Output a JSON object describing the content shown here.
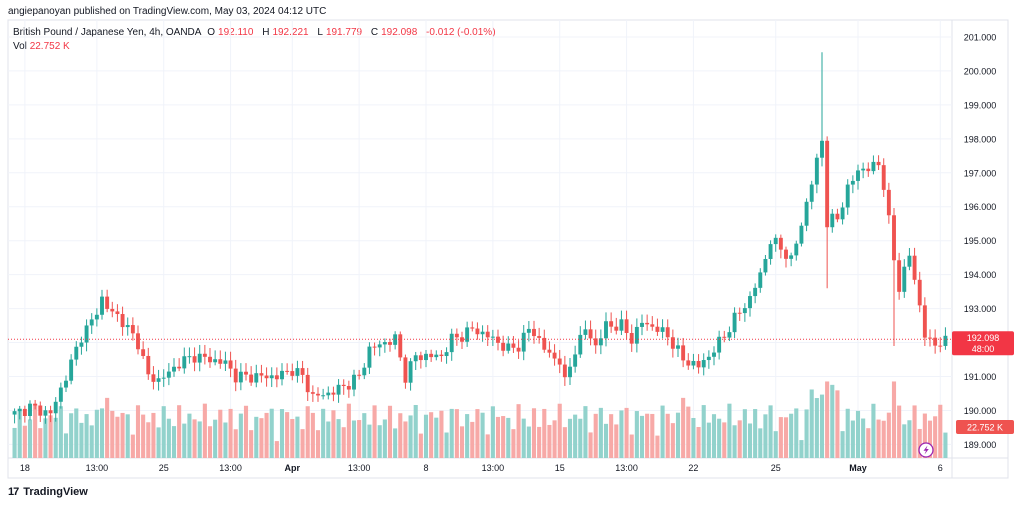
{
  "header": {
    "publisher_line": "angiepanoyan published on TradingView.com, May 03, 2024 04:12 UTC",
    "symbol": "British Pound / Japanese Yen, 4h, OANDA",
    "open_label": "O",
    "open": "192.110",
    "high_label": "H",
    "high": "192.221",
    "low_label": "L",
    "low": "191.779",
    "close_label": "C",
    "close": "192.098",
    "change": "-0.012 (-0.01%)",
    "vol_label": "Vol",
    "vol_value": "22.752 K"
  },
  "footer": {
    "brand": "TradingView",
    "logo": "17"
  },
  "colors": {
    "up": "#26a69a",
    "down": "#ef5350",
    "up_vol": "#92d2cc",
    "down_vol": "#f7a9a7",
    "price_line": "#f23645",
    "grid": "#f0f3fa"
  },
  "chart_data": {
    "type": "candlestick",
    "title": "British Pound / Japanese Yen, 4h, OANDA",
    "ylim": [
      188.6,
      201.5
    ],
    "y_ticks": [
      "201.000",
      "200.000",
      "199.000",
      "198.000",
      "197.000",
      "196.000",
      "195.000",
      "194.000",
      "193.000",
      "192.000",
      "191.000",
      "190.000",
      "189.000"
    ],
    "y_tick_values": [
      201,
      200,
      199,
      198,
      197,
      196,
      195,
      194,
      193,
      192,
      191,
      190,
      189
    ],
    "x_tick_labels": [
      "18",
      "13:00",
      "25",
      "13:00",
      "Apr",
      "13:00",
      "8",
      "13:00",
      "15",
      "13:00",
      "22",
      "25",
      "May",
      "6"
    ],
    "x_tick_bars": [
      2,
      16,
      29,
      42,
      54,
      67,
      80,
      93,
      106,
      119,
      132,
      148,
      164,
      180
    ],
    "current_price_label": "192.098",
    "countdown_label": "48:00",
    "volume_label": "22.752 K",
    "anchors": [
      [
        0,
        189.9
      ],
      [
        3,
        190.1
      ],
      [
        7,
        189.9
      ],
      [
        10,
        191.0
      ],
      [
        13,
        192.2
      ],
      [
        15,
        192.6
      ],
      [
        17,
        193.3
      ],
      [
        18,
        193.0
      ],
      [
        20,
        192.8
      ],
      [
        22,
        192.4
      ],
      [
        24,
        192.0
      ],
      [
        26,
        191.0
      ],
      [
        28,
        190.9
      ],
      [
        30,
        191.1
      ],
      [
        32,
        191.4
      ],
      [
        35,
        191.6
      ],
      [
        38,
        191.5
      ],
      [
        41,
        191.4
      ],
      [
        43,
        191.0
      ],
      [
        45,
        191.0
      ],
      [
        48,
        191.0
      ],
      [
        51,
        191.0
      ],
      [
        54,
        191.2
      ],
      [
        56,
        191.0
      ],
      [
        58,
        190.4
      ],
      [
        61,
        190.5
      ],
      [
        64,
        190.7
      ],
      [
        67,
        191.0
      ],
      [
        69,
        191.8
      ],
      [
        72,
        192.0
      ],
      [
        74,
        192.1
      ],
      [
        76,
        191.0
      ],
      [
        78,
        191.6
      ],
      [
        80,
        191.6
      ],
      [
        83,
        191.6
      ],
      [
        85,
        192.1
      ],
      [
        87,
        192.2
      ],
      [
        89,
        192.4
      ],
      [
        92,
        192.2
      ],
      [
        94,
        192.0
      ],
      [
        96,
        191.8
      ],
      [
        98,
        191.9
      ],
      [
        100,
        192.4
      ],
      [
        102,
        192.1
      ],
      [
        104,
        191.6
      ],
      [
        106,
        191.5
      ],
      [
        107,
        190.8
      ],
      [
        109,
        191.8
      ],
      [
        111,
        192.4
      ],
      [
        113,
        191.9
      ],
      [
        115,
        192.5
      ],
      [
        118,
        192.5
      ],
      [
        120,
        192.1
      ],
      [
        122,
        192.6
      ],
      [
        125,
        192.4
      ],
      [
        127,
        192.2
      ],
      [
        130,
        191.5
      ],
      [
        133,
        191.3
      ],
      [
        135,
        191.6
      ],
      [
        138,
        192.2
      ],
      [
        140,
        192.7
      ],
      [
        143,
        193.3
      ],
      [
        145,
        194.0
      ],
      [
        147,
        195.0
      ],
      [
        149,
        194.8
      ],
      [
        151,
        194.4
      ],
      [
        153,
        195.5
      ],
      [
        155,
        196.7
      ],
      [
        157,
        198.0
      ],
      [
        158,
        195.5
      ],
      [
        160,
        195.7
      ],
      [
        162,
        196.5
      ],
      [
        164,
        197.1
      ],
      [
        166,
        197.1
      ],
      [
        168,
        197.3
      ],
      [
        169,
        196.6
      ],
      [
        171,
        194.5
      ],
      [
        172,
        193.6
      ],
      [
        174,
        194.6
      ],
      [
        176,
        193.1
      ],
      [
        177,
        192.2
      ],
      [
        178,
        192.0
      ]
    ],
    "big_down_bars": [
      158,
      171,
      172
    ],
    "volume_range": [
      0,
      30
    ]
  }
}
